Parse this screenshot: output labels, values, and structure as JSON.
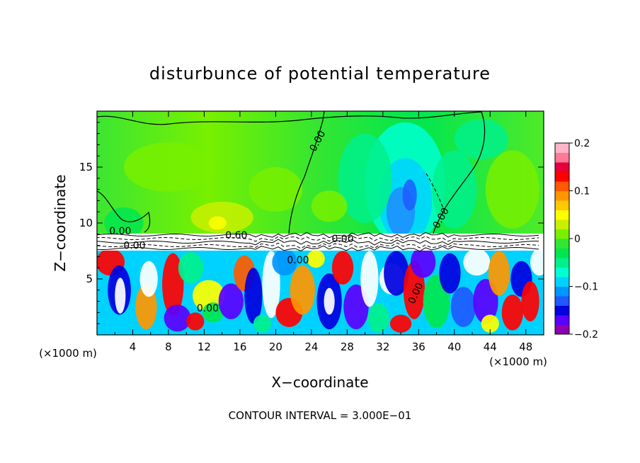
{
  "chart_data": {
    "type": "heatmap",
    "title": "disturbunce of potential temperature",
    "xlabel": "X−coordinate",
    "ylabel": "Z−coordinate",
    "x_unit": "(×1000 m)",
    "y_unit": "(×1000 m)",
    "xlim": [
      0,
      50
    ],
    "ylim": [
      0,
      20
    ],
    "x_ticks": [
      4,
      8,
      12,
      16,
      20,
      24,
      28,
      32,
      36,
      40,
      44,
      48
    ],
    "y_ticks": [
      5,
      10,
      15
    ],
    "colorbar": {
      "range": [
        -0.2,
        0.2
      ],
      "ticks": [
        0.2,
        0.1,
        0,
        -0.1,
        -0.2
      ],
      "tick_labels": [
        "0.2",
        "0.1",
        "0",
        "−0.1",
        "−0.2"
      ],
      "colors": [
        "#8e00b0",
        "#5a00ff",
        "#0000e0",
        "#1e5aff",
        "#0096ff",
        "#00d2ff",
        "#00ffd2",
        "#00f08c",
        "#00e650",
        "#32e632",
        "#78f000",
        "#c8f000",
        "#ffff00",
        "#ffc800",
        "#ff9600",
        "#ff5a00",
        "#ff0000",
        "#e6003c",
        "#ff7896",
        "#ffb4c8"
      ]
    },
    "contour_labels": [
      "0.00",
      "0.00",
      "0.00",
      "0.60",
      "0.00",
      "0.00",
      "0.00",
      "0.00",
      "0.00"
    ],
    "contour_interval_text": "CONTOUR INTERVAL = 3.000E−01"
  }
}
